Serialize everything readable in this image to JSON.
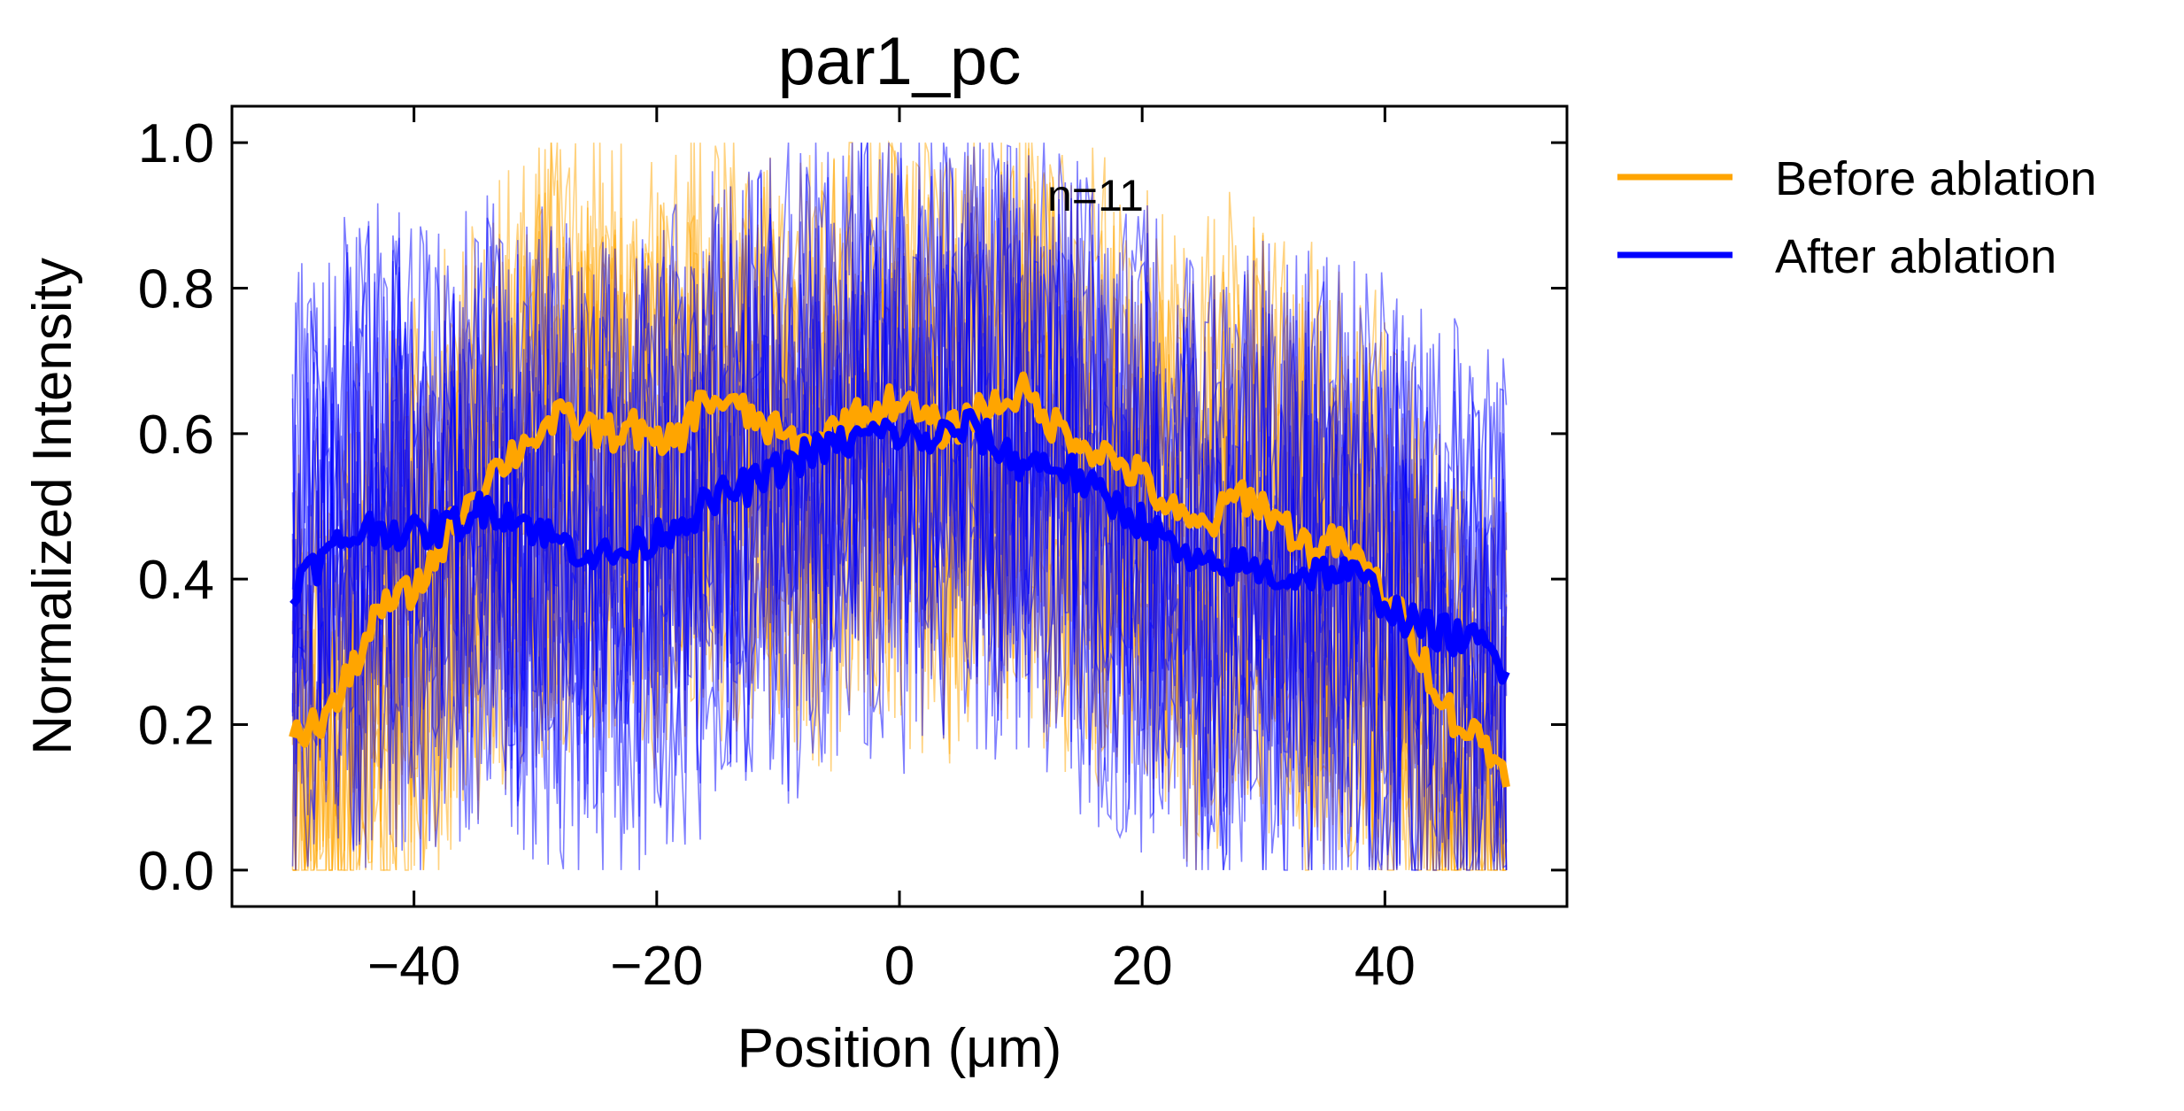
{
  "chart_data": {
    "type": "line",
    "title": "par1_pc",
    "xlabel": "Position (μm)",
    "ylabel": "Normalized Intensity",
    "xlim": [
      -55,
      55
    ],
    "ylim": [
      -0.05,
      1.05
    ],
    "x_ticks": [
      -40,
      -20,
      0,
      20,
      40
    ],
    "x_tick_labels": [
      "−40",
      "−20",
      "0",
      "20",
      "40"
    ],
    "y_ticks": [
      0.0,
      0.2,
      0.4,
      0.6,
      0.8,
      1.0
    ],
    "y_tick_labels": [
      "0.0",
      "0.2",
      "0.4",
      "0.6",
      "0.8",
      "1.0"
    ],
    "grid": false,
    "legend_position": "outside-right-top",
    "annotation": "n=11",
    "x_range": [
      -50,
      50
    ],
    "series": [
      {
        "name": "Before ablation",
        "color": "#FFA500",
        "mean_x": [
          -50,
          -48,
          -46,
          -44,
          -42,
          -40,
          -38,
          -36,
          -34,
          -32,
          -30,
          -28,
          -26,
          -24,
          -22,
          -20,
          -18,
          -16,
          -14,
          -12,
          -10,
          -8,
          -6,
          -4,
          -2,
          0,
          2,
          4,
          6,
          8,
          10,
          12,
          14,
          16,
          18,
          20,
          22,
          24,
          26,
          28,
          30,
          32,
          34,
          36,
          38,
          40,
          42,
          44,
          46,
          48,
          50
        ],
        "mean_y": [
          0.18,
          0.2,
          0.24,
          0.32,
          0.37,
          0.38,
          0.44,
          0.5,
          0.54,
          0.57,
          0.6,
          0.62,
          0.61,
          0.6,
          0.61,
          0.58,
          0.6,
          0.65,
          0.64,
          0.62,
          0.6,
          0.58,
          0.6,
          0.62,
          0.63,
          0.65,
          0.62,
          0.6,
          0.63,
          0.64,
          0.66,
          0.62,
          0.6,
          0.58,
          0.56,
          0.54,
          0.5,
          0.47,
          0.48,
          0.52,
          0.5,
          0.47,
          0.44,
          0.45,
          0.42,
          0.38,
          0.33,
          0.26,
          0.2,
          0.18,
          0.13
        ]
      },
      {
        "name": "After ablation",
        "color": "#0000FF",
        "mean_x": [
          -50,
          -48,
          -46,
          -44,
          -42,
          -40,
          -38,
          -36,
          -34,
          -32,
          -30,
          -28,
          -26,
          -24,
          -22,
          -20,
          -18,
          -16,
          -14,
          -12,
          -10,
          -8,
          -6,
          -4,
          -2,
          0,
          2,
          4,
          6,
          8,
          10,
          12,
          14,
          16,
          18,
          20,
          22,
          24,
          26,
          28,
          30,
          32,
          34,
          36,
          38,
          40,
          42,
          44,
          46,
          48,
          50
        ],
        "mean_y": [
          0.39,
          0.42,
          0.45,
          0.47,
          0.47,
          0.46,
          0.47,
          0.48,
          0.5,
          0.49,
          0.47,
          0.45,
          0.44,
          0.43,
          0.44,
          0.46,
          0.48,
          0.5,
          0.52,
          0.53,
          0.55,
          0.57,
          0.58,
          0.59,
          0.6,
          0.6,
          0.59,
          0.6,
          0.61,
          0.58,
          0.56,
          0.56,
          0.55,
          0.52,
          0.5,
          0.48,
          0.45,
          0.42,
          0.41,
          0.42,
          0.41,
          0.4,
          0.41,
          0.41,
          0.4,
          0.37,
          0.34,
          0.33,
          0.32,
          0.31,
          0.28
        ]
      }
    ],
    "trace_count_per_series": 11
  }
}
